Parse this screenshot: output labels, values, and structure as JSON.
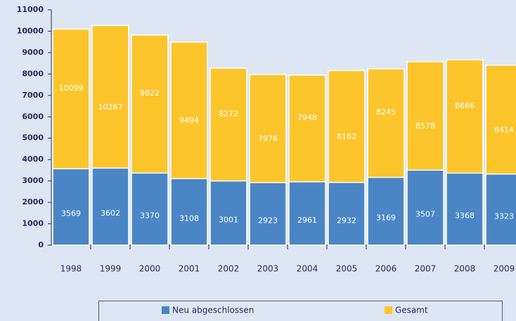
{
  "chart_data": {
    "type": "bar",
    "overlap": true,
    "categories": [
      "1998",
      "1999",
      "2000",
      "2001",
      "2002",
      "2003",
      "2004",
      "2005",
      "2006",
      "2007",
      "2008",
      "2009"
    ],
    "series": [
      {
        "name": "Gesamt",
        "color": "#fcc52b",
        "values": [
          10099,
          10267,
          9822,
          9494,
          8272,
          7976,
          7948,
          8162,
          8245,
          8578,
          8666,
          8414
        ]
      },
      {
        "name": "Neu abgeschlossen",
        "color": "#4a86c5",
        "values": [
          3569,
          3602,
          3370,
          3108,
          3001,
          2923,
          2961,
          2932,
          3169,
          3507,
          3368,
          3323
        ]
      }
    ],
    "ylim": [
      0,
      11000
    ],
    "yticks": [
      0,
      1000,
      2000,
      3000,
      4000,
      5000,
      6000,
      7000,
      8000,
      9000,
      10000,
      11000
    ]
  }
}
